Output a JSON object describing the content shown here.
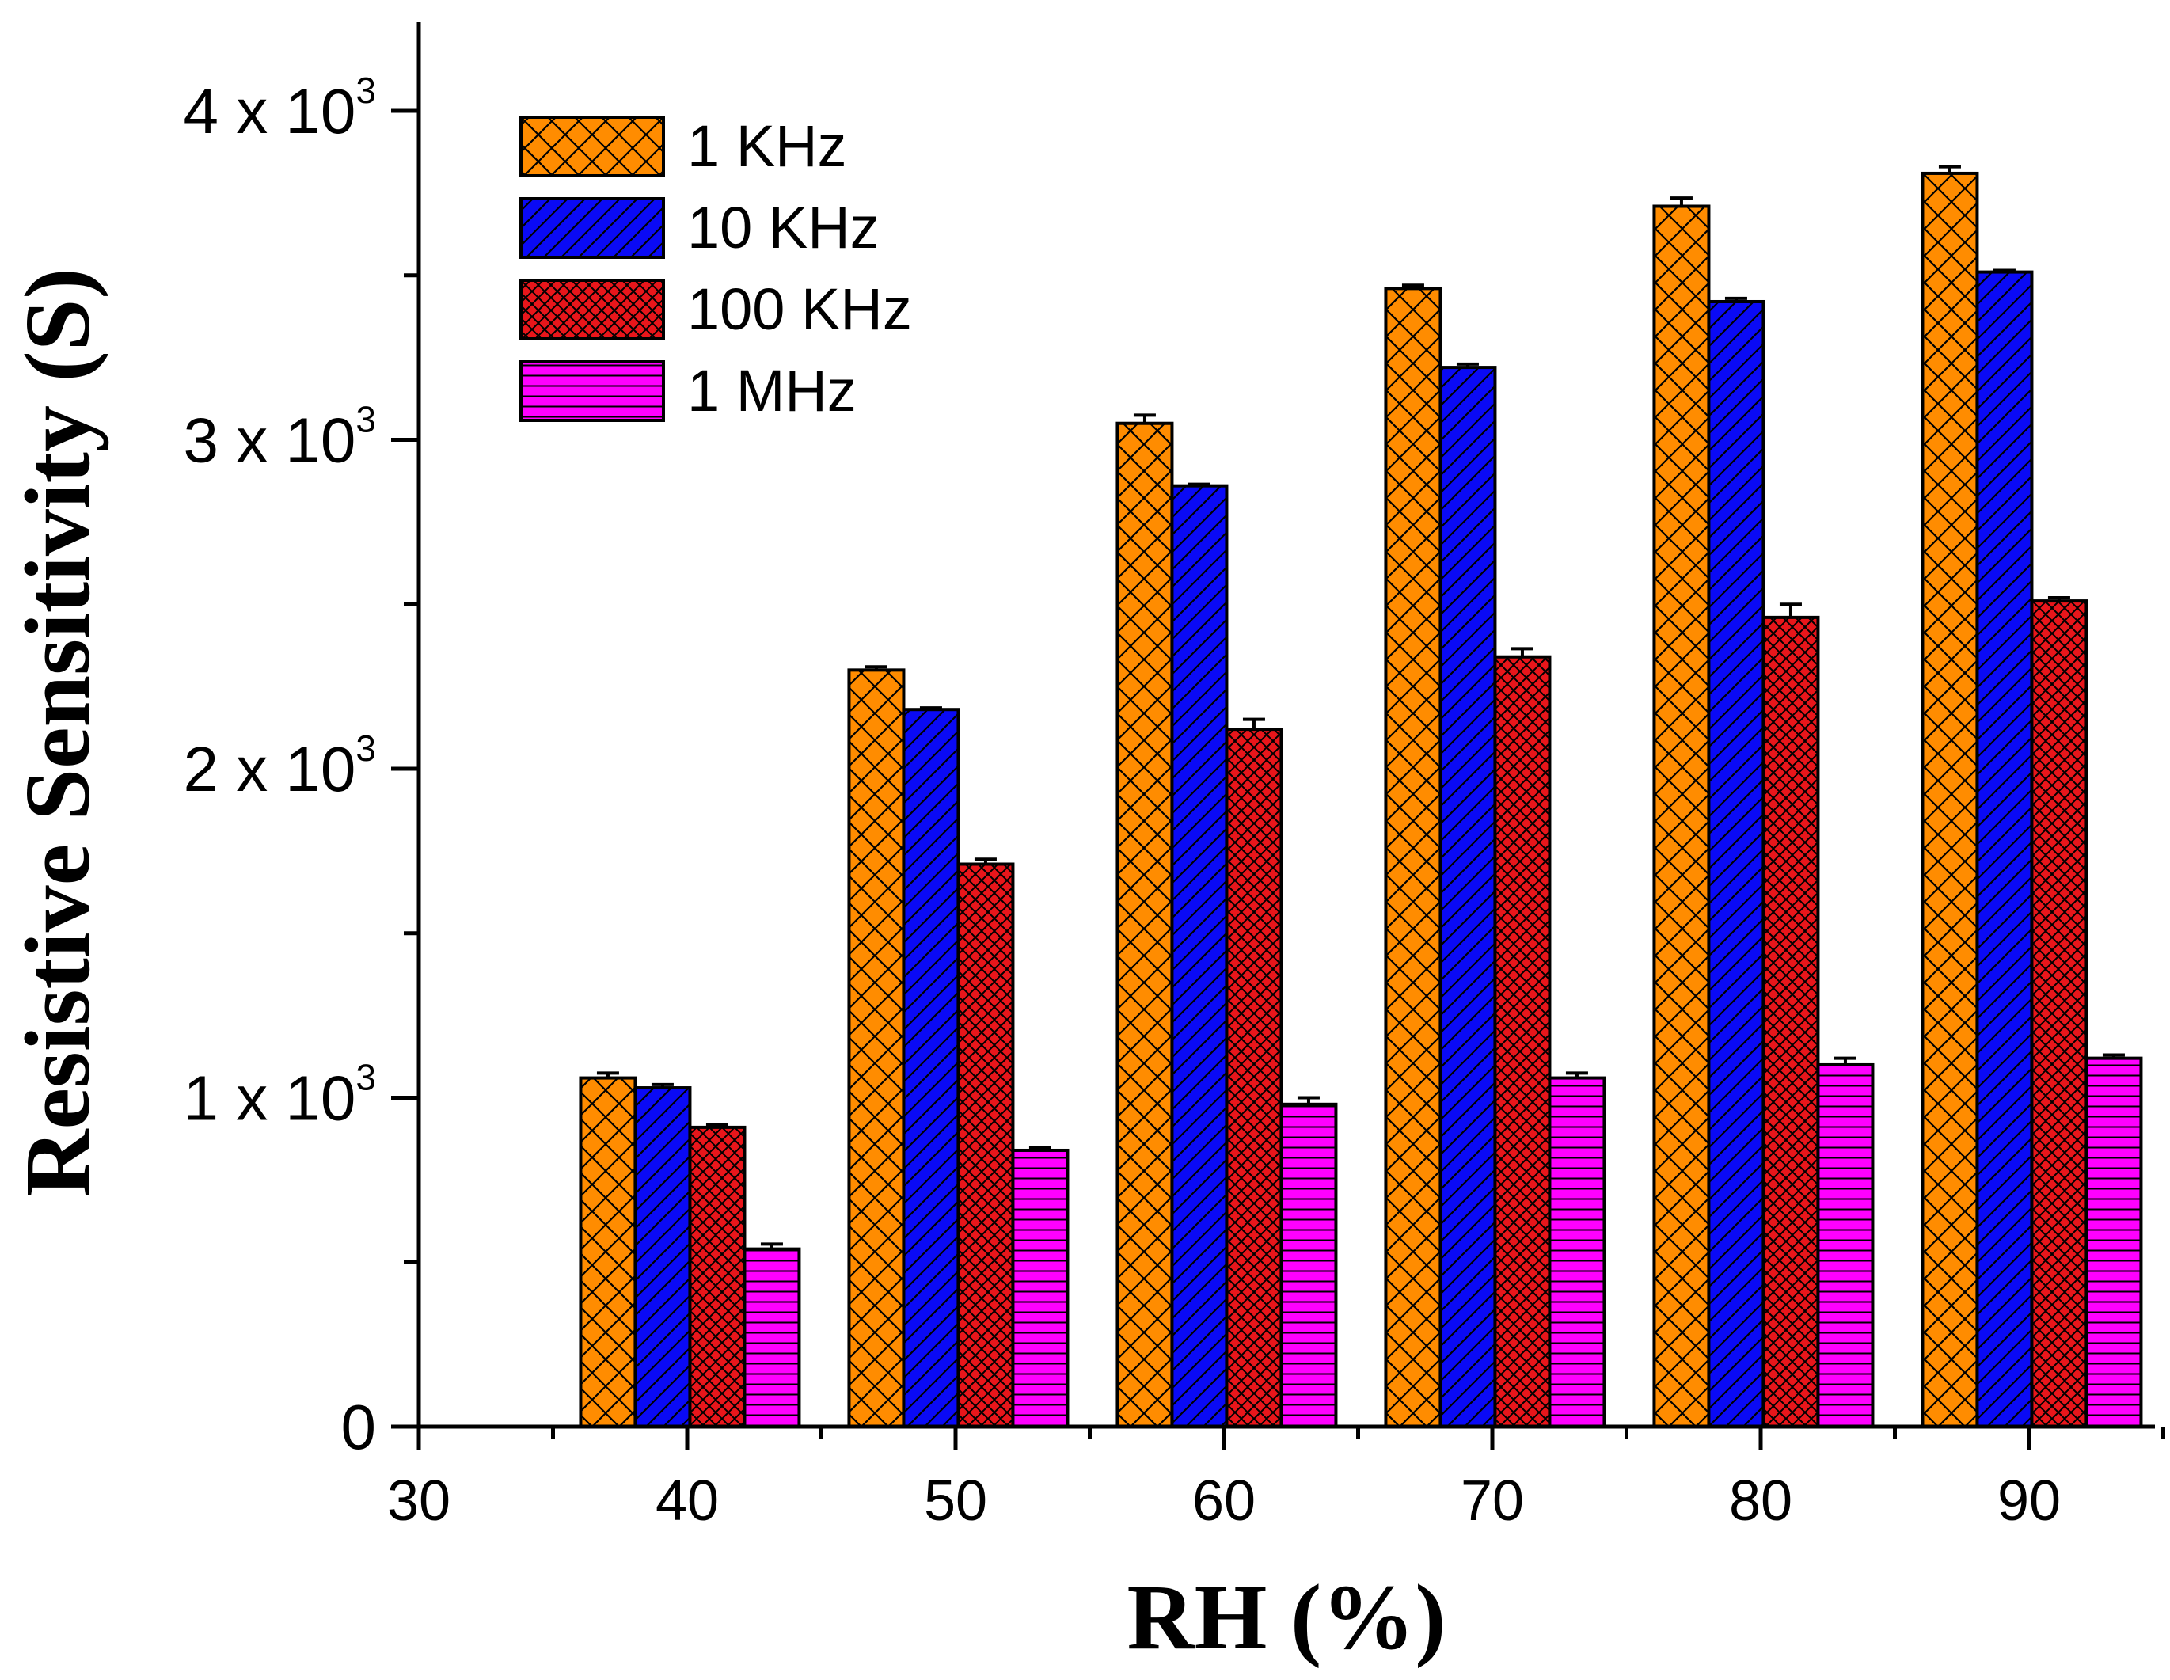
{
  "chart_data": {
    "type": "bar",
    "title": "",
    "xlabel": "RH (%)",
    "ylabel": "Resistive Sensitivity (S)",
    "xlim": [
      30,
      95
    ],
    "ylim": [
      0,
      4200
    ],
    "grid": false,
    "legend_position": "top-left",
    "categories": [
      40,
      50,
      60,
      70,
      80,
      90
    ],
    "xticks": [
      30,
      40,
      50,
      60,
      70,
      80,
      90
    ],
    "yticks": [
      {
        "value": 0,
        "base": "0",
        "exp": ""
      },
      {
        "value": 1000,
        "base": "1 x 10",
        "exp": "3"
      },
      {
        "value": 2000,
        "base": "2 x 10",
        "exp": "3"
      },
      {
        "value": 3000,
        "base": "3 x 10",
        "exp": "3"
      },
      {
        "value": 4000,
        "base": "4 x 10",
        "exp": "3"
      }
    ],
    "series": [
      {
        "name": "1 KHz",
        "color": "#FF8C00",
        "pattern": "crosshatch",
        "values": [
          1060,
          2300,
          3050,
          3460,
          3710,
          3810
        ],
        "errors": [
          15,
          10,
          25,
          10,
          25,
          20
        ]
      },
      {
        "name": "10 KHz",
        "color": "#0A0AF5",
        "pattern": "diagonal",
        "values": [
          1030,
          2180,
          2860,
          3220,
          3420,
          3510
        ],
        "errors": [
          10,
          5,
          5,
          10,
          10,
          5
        ]
      },
      {
        "name": "100 KHz",
        "color": "#E8161B",
        "pattern": "dense-crosshatch",
        "values": [
          910,
          1710,
          2120,
          2340,
          2460,
          2510
        ],
        "errors": [
          8,
          15,
          30,
          25,
          40,
          10
        ]
      },
      {
        "name": " 1 MHz",
        "color": "#FF00FF",
        "pattern": "horizontal",
        "values": [
          540,
          840,
          980,
          1060,
          1100,
          1120
        ],
        "errors": [
          15,
          8,
          20,
          15,
          20,
          10
        ]
      }
    ]
  }
}
